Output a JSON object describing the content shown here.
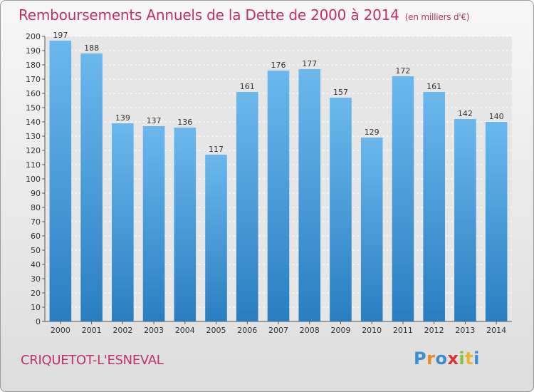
{
  "title": "Remboursements Annuels de la Dette de 2000 à 2014",
  "subtitle": "(en milliers d'€)",
  "town": "CRIQUETOT-L'ESNEVAL",
  "logo": {
    "letters": [
      "P",
      "r",
      "o",
      "x",
      "i",
      "t",
      "i"
    ],
    "colors": [
      "#3a8fd0",
      "#e8872b",
      "#3a8fd0",
      "#d9332e",
      "#8ac13c",
      "#e8b62b",
      "#3a8fd0"
    ]
  },
  "colors": {
    "bar_top": "#6bb8ee",
    "bar_bottom": "#2a7ec0",
    "title": "#c0306a"
  },
  "chart_data": {
    "type": "bar",
    "categories": [
      "2000",
      "2001",
      "2002",
      "2003",
      "2004",
      "2005",
      "2006",
      "2007",
      "2008",
      "2009",
      "2010",
      "2011",
      "2012",
      "2013",
      "2014"
    ],
    "values": [
      197,
      188,
      139,
      137,
      136,
      117,
      161,
      176,
      177,
      157,
      129,
      172,
      161,
      142,
      140
    ],
    "ylim": [
      0,
      200
    ],
    "yticks": [
      0,
      10,
      20,
      30,
      40,
      50,
      60,
      70,
      80,
      90,
      100,
      110,
      120,
      130,
      140,
      150,
      160,
      170,
      180,
      190,
      200
    ],
    "grid": true
  }
}
